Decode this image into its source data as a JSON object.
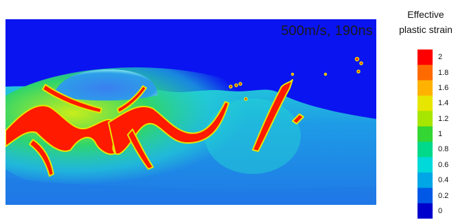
{
  "label": "500m/s, 190ns",
  "colorbar": {
    "title_line1": "Effective",
    "title_line2": "plastic strain",
    "ticks": [
      "2",
      "1.8",
      "1.6",
      "1.4",
      "1.2",
      "1",
      "0.8",
      "0.6",
      "0.4",
      "0.2",
      "0"
    ],
    "colors": [
      "#ff0000",
      "#ff6a00",
      "#ffb300",
      "#e6e600",
      "#a6e600",
      "#33d633",
      "#00d98a",
      "#00d9d9",
      "#00a6e6",
      "#0059e6",
      "#0000cc"
    ]
  },
  "field_colors": {
    "background": "#0a14f0",
    "low": "#1e7be6",
    "mid": "#22d3d3",
    "green": "#2fd56a",
    "yellow": "#c8ee1a",
    "high": "#ff1a00"
  }
}
